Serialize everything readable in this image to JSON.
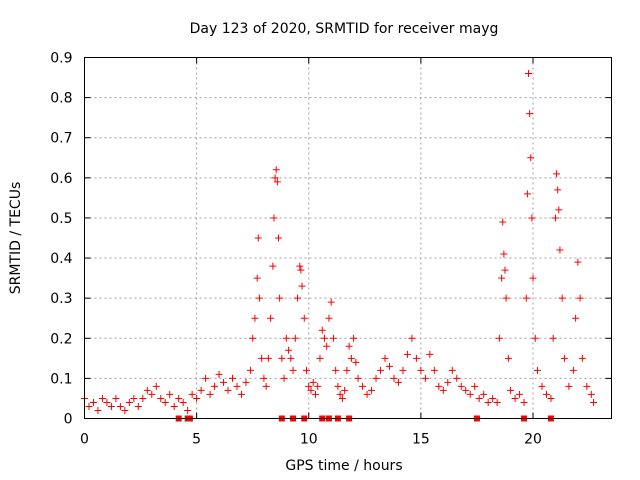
{
  "chart_data": {
    "type": "scatter",
    "title": "Day 123 of 2020, SRMTID for receiver mayg",
    "xlabel": "GPS time / hours",
    "ylabel": "SRMTID / TECUs",
    "xlim": [
      0,
      23.5
    ],
    "ylim": [
      0,
      0.9
    ],
    "xticks": [
      "0",
      "5",
      "10",
      "15",
      "20"
    ],
    "yticks": [
      "0",
      "0.1",
      "0.2",
      "0.3",
      "0.4",
      "0.5",
      "0.6",
      "0.7",
      "0.8",
      "0.9"
    ],
    "grid": true,
    "series": [
      {
        "name": "SRMTID",
        "marker": "plus",
        "color": "#ff0000",
        "points": [
          [
            0.0,
            0.05
          ],
          [
            0.2,
            0.03
          ],
          [
            0.4,
            0.04
          ],
          [
            0.6,
            0.02
          ],
          [
            0.8,
            0.05
          ],
          [
            1.0,
            0.04
          ],
          [
            1.2,
            0.03
          ],
          [
            1.4,
            0.05
          ],
          [
            1.6,
            0.03
          ],
          [
            1.8,
            0.02
          ],
          [
            2.0,
            0.04
          ],
          [
            2.2,
            0.05
          ],
          [
            2.4,
            0.03
          ],
          [
            2.6,
            0.05
          ],
          [
            2.8,
            0.07
          ],
          [
            3.0,
            0.06
          ],
          [
            3.2,
            0.08
          ],
          [
            3.4,
            0.05
          ],
          [
            3.6,
            0.04
          ],
          [
            3.8,
            0.06
          ],
          [
            4.0,
            0.03
          ],
          [
            4.2,
            0.05
          ],
          [
            4.4,
            0.04
          ],
          [
            4.6,
            0.02
          ],
          [
            4.8,
            0.06
          ],
          [
            5.0,
            0.05
          ],
          [
            5.2,
            0.07
          ],
          [
            5.4,
            0.1
          ],
          [
            5.6,
            0.06
          ],
          [
            5.8,
            0.08
          ],
          [
            6.0,
            0.11
          ],
          [
            6.2,
            0.09
          ],
          [
            6.4,
            0.07
          ],
          [
            6.6,
            0.1
          ],
          [
            6.8,
            0.08
          ],
          [
            7.0,
            0.06
          ],
          [
            7.2,
            0.09
          ],
          [
            7.4,
            0.12
          ],
          [
            7.5,
            0.2
          ],
          [
            7.6,
            0.25
          ],
          [
            7.7,
            0.35
          ],
          [
            7.75,
            0.45
          ],
          [
            7.8,
            0.3
          ],
          [
            7.9,
            0.15
          ],
          [
            8.0,
            0.1
          ],
          [
            8.1,
            0.08
          ],
          [
            8.2,
            0.15
          ],
          [
            8.3,
            0.25
          ],
          [
            8.4,
            0.38
          ],
          [
            8.45,
            0.5
          ],
          [
            8.5,
            0.6
          ],
          [
            8.55,
            0.62
          ],
          [
            8.6,
            0.59
          ],
          [
            8.65,
            0.45
          ],
          [
            8.7,
            0.3
          ],
          [
            8.8,
            0.15
          ],
          [
            8.9,
            0.1
          ],
          [
            9.0,
            0.2
          ],
          [
            9.1,
            0.17
          ],
          [
            9.2,
            0.15
          ],
          [
            9.3,
            0.12
          ],
          [
            9.4,
            0.2
          ],
          [
            9.5,
            0.3
          ],
          [
            9.6,
            0.38
          ],
          [
            9.65,
            0.37
          ],
          [
            9.7,
            0.33
          ],
          [
            9.8,
            0.25
          ],
          [
            9.9,
            0.12
          ],
          [
            10.0,
            0.08
          ],
          [
            10.1,
            0.07
          ],
          [
            10.2,
            0.09
          ],
          [
            10.3,
            0.06
          ],
          [
            10.4,
            0.08
          ],
          [
            10.5,
            0.15
          ],
          [
            10.6,
            0.22
          ],
          [
            10.7,
            0.2
          ],
          [
            10.8,
            0.18
          ],
          [
            10.9,
            0.25
          ],
          [
            11.0,
            0.29
          ],
          [
            11.1,
            0.2
          ],
          [
            11.2,
            0.12
          ],
          [
            11.3,
            0.08
          ],
          [
            11.4,
            0.06
          ],
          [
            11.5,
            0.05
          ],
          [
            11.6,
            0.07
          ],
          [
            11.7,
            0.12
          ],
          [
            11.8,
            0.18
          ],
          [
            11.9,
            0.15
          ],
          [
            12.0,
            0.2
          ],
          [
            12.1,
            0.14
          ],
          [
            12.2,
            0.1
          ],
          [
            12.4,
            0.08
          ],
          [
            12.6,
            0.06
          ],
          [
            12.8,
            0.07
          ],
          [
            13.0,
            0.1
          ],
          [
            13.2,
            0.12
          ],
          [
            13.4,
            0.15
          ],
          [
            13.6,
            0.13
          ],
          [
            13.8,
            0.1
          ],
          [
            14.0,
            0.09
          ],
          [
            14.2,
            0.12
          ],
          [
            14.4,
            0.16
          ],
          [
            14.6,
            0.2
          ],
          [
            14.8,
            0.15
          ],
          [
            15.0,
            0.12
          ],
          [
            15.2,
            0.1
          ],
          [
            15.4,
            0.16
          ],
          [
            15.6,
            0.12
          ],
          [
            15.8,
            0.08
          ],
          [
            16.0,
            0.07
          ],
          [
            16.2,
            0.09
          ],
          [
            16.4,
            0.12
          ],
          [
            16.6,
            0.1
          ],
          [
            16.8,
            0.08
          ],
          [
            17.0,
            0.07
          ],
          [
            17.2,
            0.06
          ],
          [
            17.4,
            0.08
          ],
          [
            17.6,
            0.05
          ],
          [
            17.8,
            0.06
          ],
          [
            18.0,
            0.04
          ],
          [
            18.2,
            0.05
          ],
          [
            18.4,
            0.04
          ],
          [
            18.5,
            0.2
          ],
          [
            18.6,
            0.35
          ],
          [
            18.65,
            0.49
          ],
          [
            18.7,
            0.41
          ],
          [
            18.75,
            0.37
          ],
          [
            18.8,
            0.3
          ],
          [
            18.9,
            0.15
          ],
          [
            19.0,
            0.07
          ],
          [
            19.2,
            0.05
          ],
          [
            19.4,
            0.06
          ],
          [
            19.6,
            0.04
          ],
          [
            19.7,
            0.3
          ],
          [
            19.75,
            0.56
          ],
          [
            19.8,
            0.86
          ],
          [
            19.85,
            0.76
          ],
          [
            19.9,
            0.65
          ],
          [
            19.95,
            0.5
          ],
          [
            20.0,
            0.35
          ],
          [
            20.1,
            0.2
          ],
          [
            20.2,
            0.12
          ],
          [
            20.4,
            0.08
          ],
          [
            20.6,
            0.06
          ],
          [
            20.8,
            0.05
          ],
          [
            20.9,
            0.2
          ],
          [
            21.0,
            0.5
          ],
          [
            21.05,
            0.61
          ],
          [
            21.1,
            0.57
          ],
          [
            21.15,
            0.52
          ],
          [
            21.2,
            0.42
          ],
          [
            21.3,
            0.3
          ],
          [
            21.4,
            0.15
          ],
          [
            21.6,
            0.08
          ],
          [
            21.8,
            0.12
          ],
          [
            21.9,
            0.25
          ],
          [
            22.0,
            0.39
          ],
          [
            22.1,
            0.3
          ],
          [
            22.2,
            0.15
          ],
          [
            22.4,
            0.08
          ],
          [
            22.6,
            0.06
          ],
          [
            22.7,
            0.04
          ]
        ]
      }
    ],
    "gap_markers": [
      4.2,
      4.6,
      4.7,
      8.8,
      9.3,
      9.8,
      10.6,
      10.9,
      11.3,
      11.8,
      17.5,
      19.6,
      20.8
    ]
  }
}
